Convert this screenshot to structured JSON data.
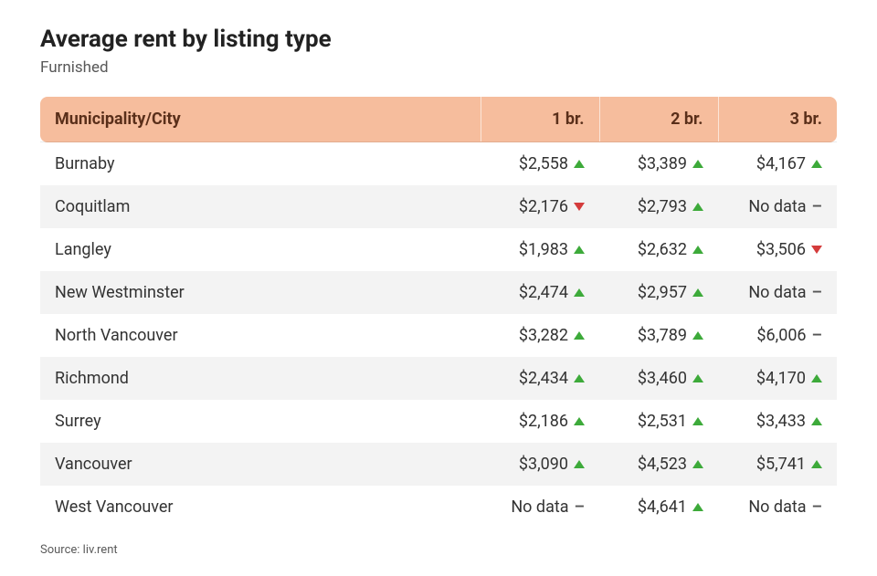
{
  "title": "Average rent by listing type",
  "subtitle": "Furnished",
  "source_label": "Source: liv.rent",
  "colors": {
    "header_bg": "#f6bd9d",
    "header_text": "#5a2f1a",
    "text": "#333333",
    "subtitle": "#585858",
    "zebra": "#f3f3f3",
    "up": "#3daa3a",
    "down": "#d43b3b",
    "neutral": "#555555",
    "source": "#5a5a5a"
  },
  "columns": [
    {
      "key": "city",
      "label": "Municipality/City",
      "type": "text"
    },
    {
      "key": "br1",
      "label": "1 br.",
      "type": "num"
    },
    {
      "key": "br2",
      "label": "2 br.",
      "type": "num"
    },
    {
      "key": "br3",
      "label": "3 br.",
      "type": "num"
    }
  ],
  "no_data_label": "No data",
  "rows": [
    {
      "city": "Burnaby",
      "br1": {
        "value": 2558,
        "trend": "up"
      },
      "br2": {
        "value": 3389,
        "trend": "up"
      },
      "br3": {
        "value": 4167,
        "trend": "up"
      }
    },
    {
      "city": "Coquitlam",
      "br1": {
        "value": 2176,
        "trend": "down"
      },
      "br2": {
        "value": 2793,
        "trend": "up"
      },
      "br3": {
        "value": null,
        "trend": "flat"
      }
    },
    {
      "city": "Langley",
      "br1": {
        "value": 1983,
        "trend": "up"
      },
      "br2": {
        "value": 2632,
        "trend": "up"
      },
      "br3": {
        "value": 3506,
        "trend": "down"
      }
    },
    {
      "city": "New Westminster",
      "br1": {
        "value": 2474,
        "trend": "up"
      },
      "br2": {
        "value": 2957,
        "trend": "up"
      },
      "br3": {
        "value": null,
        "trend": "flat"
      }
    },
    {
      "city": "North Vancouver",
      "br1": {
        "value": 3282,
        "trend": "up"
      },
      "br2": {
        "value": 3789,
        "trend": "up"
      },
      "br3": {
        "value": 6006,
        "trend": "flat"
      }
    },
    {
      "city": "Richmond",
      "br1": {
        "value": 2434,
        "trend": "up"
      },
      "br2": {
        "value": 3460,
        "trend": "up"
      },
      "br3": {
        "value": 4170,
        "trend": "up"
      }
    },
    {
      "city": "Surrey",
      "br1": {
        "value": 2186,
        "trend": "up"
      },
      "br2": {
        "value": 2531,
        "trend": "up"
      },
      "br3": {
        "value": 3433,
        "trend": "up"
      }
    },
    {
      "city": "Vancouver",
      "br1": {
        "value": 3090,
        "trend": "up"
      },
      "br2": {
        "value": 4523,
        "trend": "up"
      },
      "br3": {
        "value": 5741,
        "trend": "up"
      }
    },
    {
      "city": "West Vancouver",
      "br1": {
        "value": null,
        "trend": "flat"
      },
      "br2": {
        "value": 4641,
        "trend": "up"
      },
      "br3": {
        "value": null,
        "trend": "flat"
      }
    }
  ]
}
